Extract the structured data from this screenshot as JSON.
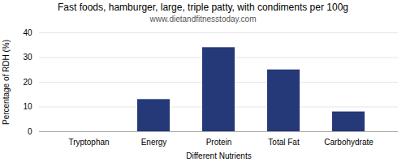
{
  "chart_data": {
    "type": "bar",
    "title": "Fast foods, hamburger, large, triple patty, with condiments per 100g",
    "subtitle": "www.dietandfitnesstoday.com",
    "categories": [
      "Tryptophan",
      "Energy",
      "Protein",
      "Total Fat",
      "Carbohydrate"
    ],
    "values": [
      0,
      13,
      34,
      25,
      8
    ],
    "color": "#253878",
    "xlabel": "Different Nutrients",
    "ylabel": "Percentage of RDH (%)",
    "ylim": [
      0,
      40
    ],
    "yticks": [
      0,
      10,
      20,
      30,
      40
    ],
    "grid": true
  }
}
